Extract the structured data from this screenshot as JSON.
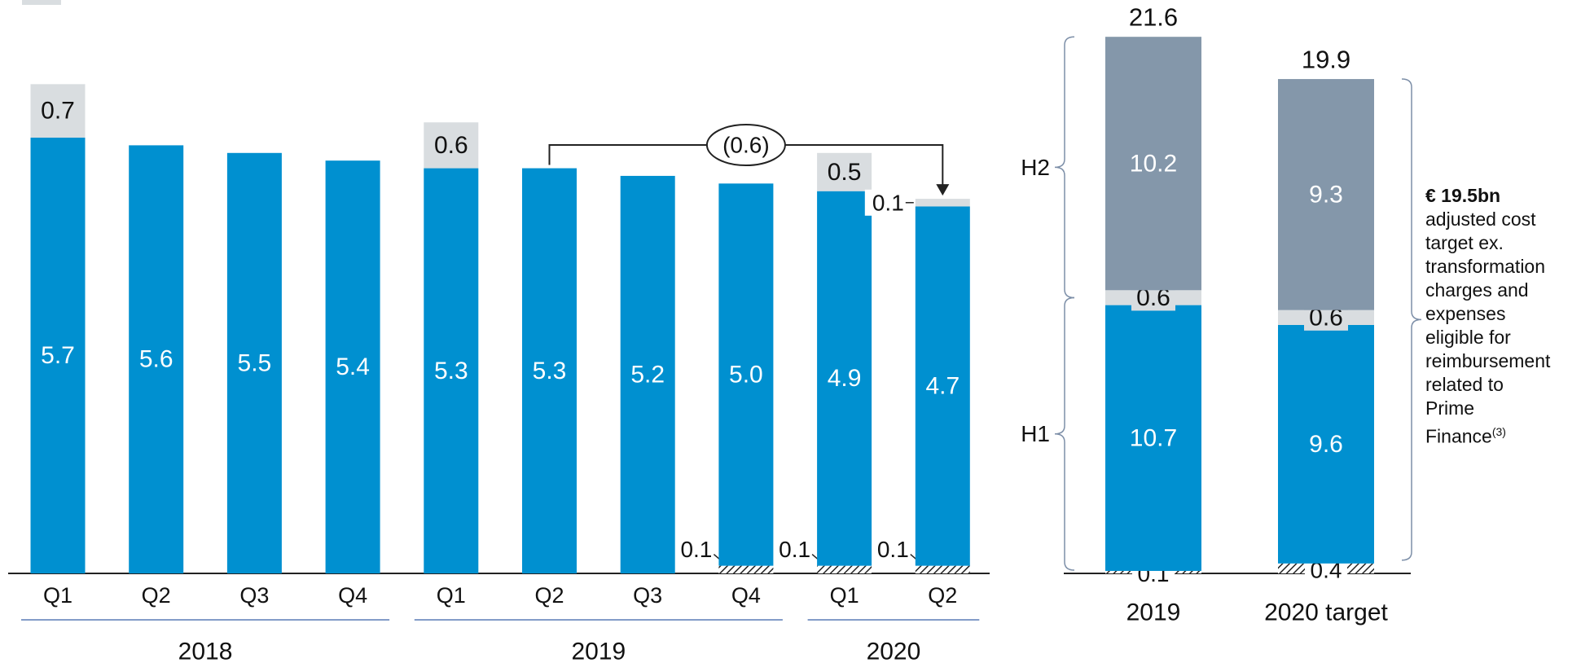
{
  "chart_data": [
    {
      "type": "bar",
      "stacked": true,
      "categories": [
        "Q1",
        "Q2",
        "Q3",
        "Q4",
        "Q1",
        "Q2",
        "Q3",
        "Q4",
        "Q1",
        "Q2"
      ],
      "groups": [
        {
          "label": "2018",
          "span": 4
        },
        {
          "label": "2019",
          "span": 4
        },
        {
          "label": "2020",
          "span": 2
        }
      ],
      "series": [
        {
          "color": "hatched",
          "values": [
            null,
            null,
            null,
            null,
            null,
            null,
            null,
            0.1,
            0.1,
            0.1
          ]
        },
        {
          "color": "#0090d0",
          "values": [
            5.7,
            5.6,
            5.5,
            5.4,
            5.3,
            5.3,
            5.2,
            5.0,
            4.9,
            4.7
          ],
          "value_labels": [
            "5.7",
            "5.6",
            "5.5",
            "5.4",
            "5.3",
            "5.3",
            "5.2",
            "5.0",
            "4.9",
            "4.7"
          ]
        },
        {
          "color": "#d9dde0",
          "values": [
            0.7,
            null,
            null,
            null,
            0.6,
            null,
            null,
            null,
            0.5,
            0.1
          ]
        }
      ],
      "annotation": "(0.6)",
      "ylim": [
        0,
        7
      ]
    },
    {
      "type": "bar",
      "stacked": true,
      "categories": [
        "2019",
        "2020 target"
      ],
      "series": [
        {
          "color": "hatched",
          "values": [
            0.1,
            0.4
          ]
        },
        {
          "color": "#0090d0",
          "values": [
            10.7,
            9.6
          ]
        },
        {
          "color": "#d9dde0",
          "values": [
            0.6,
            0.6
          ]
        },
        {
          "color": "#8497aa",
          "values": [
            10.2,
            9.3
          ]
        }
      ],
      "totals": [
        21.6,
        19.9
      ],
      "brace_labels": [
        "H1",
        "H2"
      ],
      "note": {
        "title": "€ 19.5bn",
        "text": "adjusted cost target ex. transformation charges and expenses eligible for reimbursement related to Prime Finance",
        "sup": "(3)"
      },
      "ylim": [
        0,
        22
      ]
    }
  ]
}
